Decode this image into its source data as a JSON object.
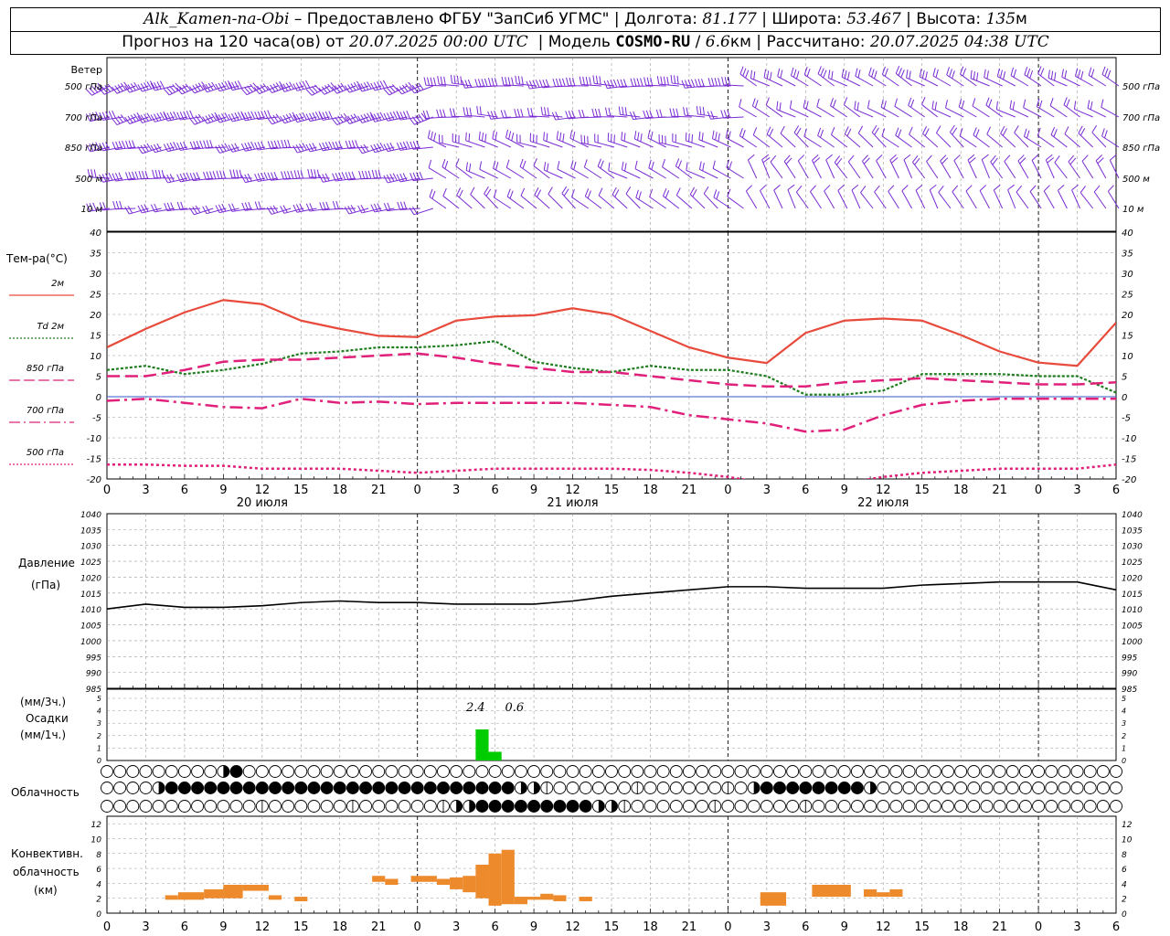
{
  "header": {
    "station": "Alk_Kamen-na-Obi",
    "provider": "– Предоставлено ФГБУ \"ЗапСиб УГМС\"",
    "lon_label": "Долгота:",
    "lon_value": "81.177",
    "lat_label": "Широта:",
    "lat_value": "53.467",
    "alt_label": "Высота:",
    "alt_value": "135",
    "alt_unit": "м",
    "forecast_prefix": "Прогноз на 120 часа(ов) от",
    "forecast_start": "20.07.2025 00:00 UTC",
    "model_label": "Модель",
    "model_name": "COSMO-RU",
    "model_res": "6.6",
    "model_res_unit": "км",
    "calc_label": "Рассчитано:",
    "calc_time": "20.07.2025 04:38 UTC"
  },
  "labels": {
    "wind": "Ветер",
    "wind_levels": [
      "500 гПа",
      "700 гПа",
      "850 гПа",
      "500 м",
      "10 м"
    ],
    "temp_title": "Тем-ра(°С)",
    "temp_legend": [
      {
        "label": "2м",
        "color": "#e84a3c",
        "style": "solid"
      },
      {
        "label": "Td 2м",
        "color": "#1e7d1e",
        "style": "dotted"
      },
      {
        "label": "850 гПа",
        "color": "#e0207a",
        "style": "dashed"
      },
      {
        "label": "700 гПа",
        "color": "#e0207a",
        "style": "dashdot"
      },
      {
        "label": "500 гПа",
        "color": "#e0207a",
        "style": "dotted"
      }
    ],
    "pressure_title": [
      "Давление",
      "(гПа)"
    ],
    "precip_title": [
      "(мм/3ч.)",
      "Осадки",
      "(мм/1ч.)"
    ],
    "cloud_title": "Облачность",
    "conv_title": [
      "Конвективн.",
      "облачность",
      "(км)"
    ]
  },
  "colors": {
    "wind": "#7a2bd4",
    "t2m": "#e84a3c",
    "td2m": "#1e7d1e",
    "t850": "#e0207a",
    "pressure": "#000000",
    "precip": "#00cc00",
    "conv": "#ec8a2c",
    "grid": "#9a9a9a"
  },
  "time_axis": {
    "hour_ticks": [
      "0",
      "3",
      "6",
      "9",
      "12",
      "15",
      "18",
      "21",
      "0",
      "3",
      "6",
      "9",
      "12",
      "15",
      "18",
      "21",
      "0",
      "3",
      "6",
      "9",
      "12",
      "15",
      "18",
      "21",
      "0",
      "3",
      "6"
    ],
    "dates": [
      {
        "label": "20 июля",
        "hour": 12
      },
      {
        "label": "21 июля",
        "hour": 36
      },
      {
        "label": "22 июля",
        "hour": 60
      }
    ]
  },
  "chart_data": [
    {
      "type": "line",
      "name": "temperature",
      "ylim": [
        -20,
        40
      ],
      "yticks": [
        -20,
        -15,
        -10,
        -5,
        0,
        5,
        10,
        15,
        20,
        25,
        30,
        35,
        40
      ],
      "x": [
        0,
        3,
        6,
        9,
        12,
        15,
        18,
        21,
        24,
        27,
        30,
        33,
        36,
        39,
        42,
        45,
        48,
        51,
        54,
        57,
        60,
        63,
        66,
        69,
        72,
        75,
        78
      ],
      "series": [
        {
          "name": "2м",
          "values": [
            12,
            16.5,
            20.5,
            23.5,
            22.5,
            18.5,
            16.5,
            14.8,
            14.5,
            18.5,
            19.5,
            19.8,
            21.5,
            20,
            16,
            12,
            9.5,
            8.2,
            15.5,
            18.5,
            19,
            18.5,
            15,
            11,
            8.3,
            7.5,
            18
          ]
        },
        {
          "name": "Td 2м",
          "values": [
            6.5,
            7.5,
            5.5,
            6.5,
            8,
            10.5,
            11,
            12,
            12,
            12.5,
            13.5,
            8.5,
            7,
            6,
            7.5,
            6.5,
            6.5,
            5,
            0.5,
            0.5,
            1.5,
            5.5,
            5.5,
            5.5,
            5,
            5,
            1
          ]
        },
        {
          "name": "850 гПа",
          "values": [
            5,
            5,
            6.5,
            8.5,
            9,
            9,
            9.5,
            10,
            10.5,
            9.5,
            8,
            7,
            6,
            6,
            5,
            4,
            3,
            2.5,
            2.5,
            3.5,
            4,
            4.5,
            4,
            3.5,
            3,
            3,
            3.5
          ]
        },
        {
          "name": "700 гПа",
          "values": [
            -1,
            -0.5,
            -1.5,
            -2.5,
            -2.8,
            -0.5,
            -1.5,
            -1.2,
            -1.8,
            -1.5,
            -1.5,
            -1.5,
            -1.5,
            -2,
            -2.5,
            -4.5,
            -5.5,
            -6.5,
            -8.5,
            -8,
            -4.5,
            -2,
            -1,
            -0.5,
            -0.5,
            -0.5,
            -0.5
          ]
        },
        {
          "name": "500 гПа",
          "values": [
            -16.5,
            -16.5,
            -16.8,
            -16.8,
            -17.5,
            -17.5,
            -17.5,
            -18,
            -18.5,
            -18,
            -17.5,
            -17.5,
            -17.5,
            -17.5,
            -17.8,
            -18.5,
            -19.5,
            -21,
            -21,
            -21,
            -19.5,
            -18.5,
            -18,
            -17.5,
            -17.5,
            -17.5,
            -16.5
          ]
        }
      ]
    },
    {
      "type": "line",
      "name": "pressure",
      "ylim": [
        985,
        1040
      ],
      "yticks": [
        985,
        990,
        995,
        1000,
        1005,
        1010,
        1015,
        1020,
        1025,
        1030,
        1035,
        1040
      ],
      "x": [
        0,
        3,
        6,
        9,
        12,
        15,
        18,
        21,
        24,
        27,
        30,
        33,
        36,
        39,
        42,
        45,
        48,
        51,
        54,
        57,
        60,
        63,
        66,
        69,
        72,
        75,
        78
      ],
      "series": [
        {
          "name": "Давление",
          "values": [
            1010,
            1011.5,
            1010.5,
            1010.5,
            1011,
            1012,
            1012.5,
            1012,
            1012,
            1011.5,
            1011.5,
            1011.5,
            1012.5,
            1014,
            1015,
            1016,
            1017,
            1017,
            1016.5,
            1016.5,
            1016.5,
            1017.5,
            1018,
            1018.5,
            1018.5,
            1018.5,
            1016
          ]
        }
      ]
    },
    {
      "type": "bar",
      "name": "precipitation",
      "ylim": [
        0,
        5
      ],
      "yticks": [
        0,
        1,
        2,
        3,
        4,
        5
      ],
      "annotations": [
        {
          "text": "2.4",
          "hour": 28.5
        },
        {
          "text": "0.6",
          "hour": 31.5
        }
      ],
      "bars": [
        {
          "hour": 29,
          "value": 2.5
        },
        {
          "hour": 30,
          "value": 0.7
        }
      ]
    },
    {
      "type": "bar",
      "name": "convective_cloud",
      "ylim": [
        0,
        13
      ],
      "yticks": [
        0,
        2,
        4,
        6,
        8,
        10,
        12
      ],
      "bars": [
        {
          "start": 4.5,
          "end": 5.5,
          "base": 1.8,
          "top": 2.4
        },
        {
          "start": 5.5,
          "end": 7.5,
          "base": 1.8,
          "top": 2.8
        },
        {
          "start": 7.5,
          "end": 9,
          "base": 2,
          "top": 3.2
        },
        {
          "start": 9,
          "end": 10.5,
          "base": 2,
          "top": 3.8
        },
        {
          "start": 10.5,
          "end": 12.5,
          "base": 3,
          "top": 3.8
        },
        {
          "start": 12.5,
          "end": 13.5,
          "base": 1.8,
          "top": 2.4
        },
        {
          "start": 14.5,
          "end": 15.5,
          "base": 1.6,
          "top": 2.2
        },
        {
          "start": 20.5,
          "end": 21.5,
          "base": 4.2,
          "top": 5
        },
        {
          "start": 21.5,
          "end": 22.5,
          "base": 3.8,
          "top": 4.6
        },
        {
          "start": 23.5,
          "end": 25.5,
          "base": 4.2,
          "top": 5
        },
        {
          "start": 25.5,
          "end": 26.5,
          "base": 3.8,
          "top": 4.6
        },
        {
          "start": 26.5,
          "end": 27.5,
          "base": 3.2,
          "top": 4.8
        },
        {
          "start": 27.5,
          "end": 28.5,
          "base": 2.8,
          "top": 5
        },
        {
          "start": 28.5,
          "end": 29.5,
          "base": 2,
          "top": 6.5
        },
        {
          "start": 29.5,
          "end": 30.5,
          "base": 1,
          "top": 8
        },
        {
          "start": 30.5,
          "end": 31.5,
          "base": 1.2,
          "top": 8.5
        },
        {
          "start": 31.5,
          "end": 32.5,
          "base": 1.2,
          "top": 2.2
        },
        {
          "start": 32.5,
          "end": 33.5,
          "base": 1.8,
          "top": 2.2
        },
        {
          "start": 33.5,
          "end": 34.5,
          "base": 1.8,
          "top": 2.6
        },
        {
          "start": 34.5,
          "end": 35.5,
          "base": 1.6,
          "top": 2.4
        },
        {
          "start": 36.5,
          "end": 37.5,
          "base": 1.6,
          "top": 2.2
        },
        {
          "start": 50.5,
          "end": 52.5,
          "base": 1,
          "top": 2.8
        },
        {
          "start": 54.5,
          "end": 57.5,
          "base": 2.2,
          "top": 3.8
        },
        {
          "start": 58.5,
          "end": 59.5,
          "base": 2.2,
          "top": 3.2
        },
        {
          "start": 59.5,
          "end": 60.5,
          "base": 2.2,
          "top": 2.8
        },
        {
          "start": 60.5,
          "end": 61.5,
          "base": 2.2,
          "top": 3.2
        }
      ]
    }
  ]
}
